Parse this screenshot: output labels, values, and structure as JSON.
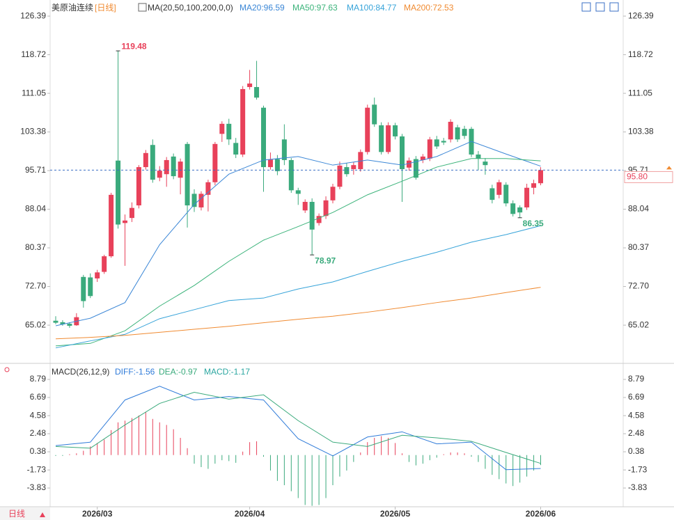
{
  "chart_data": [
    {
      "type": "candlestick",
      "title": "美原油连续",
      "period": "[日线]",
      "indicator": "MA(20,50,100,200,0,0)",
      "open": [
        65.9,
        65.6,
        65.3,
        65.0,
        74.6,
        74.5,
        74.3,
        75.6,
        78.7,
        97.7,
        85.3,
        86.3,
        88.8,
        96.4,
        100.8,
        94.3,
        95.0,
        98.5,
        94.3,
        101.0,
        91.1,
        88.4,
        90.9,
        93.4,
        103.0,
        105.0,
        101.2,
        98.9,
        112.3,
        112.3,
        108.2,
        96.4,
        98.0,
        101.9,
        97.8,
        91.8,
        87.8,
        89.5,
        85.3,
        86.7,
        89.8,
        92.5,
        96.4,
        96.0,
        96.0,
        99.4,
        108.8,
        104.7,
        99.4,
        104.7,
        102.5,
        96.3,
        98.0,
        97.8,
        98.1,
        101.9,
        101.6,
        101.9,
        104.3,
        104.0,
        104.0,
        98.9,
        97.5,
        92.2,
        90.9,
        92.9,
        89.2,
        88.4,
        88.4,
        92.3,
        93.2
      ],
      "high": [
        66.8,
        66.0,
        65.6,
        67.4,
        75.0,
        75.3,
        76.0,
        79.0,
        91.3,
        119.48,
        87.0,
        89.4,
        96.8,
        99.8,
        101.9,
        96.6,
        98.4,
        99.1,
        98.1,
        101.4,
        92.0,
        91.6,
        93.9,
        101.4,
        105.5,
        106.0,
        102.2,
        112.5,
        115.7,
        117.5,
        108.6,
        99.3,
        98.8,
        104.9,
        98.2,
        92.3,
        90.0,
        90.2,
        87.2,
        90.6,
        93.1,
        97.5,
        97.2,
        97.4,
        99.9,
        108.8,
        110.2,
        105.3,
        105.3,
        105.2,
        103.0,
        98.3,
        98.6,
        99.0,
        102.4,
        102.6,
        102.2,
        105.9,
        104.8,
        104.6,
        104.4,
        99.6,
        98.2,
        92.9,
        93.9,
        93.4,
        89.8,
        88.8,
        93.1,
        93.9,
        96.4
      ],
      "low": [
        65.2,
        64.9,
        64.5,
        64.9,
        68.5,
        70.4,
        73.6,
        75.2,
        78.4,
        84.2,
        76.8,
        85.5,
        88.2,
        95.9,
        93.3,
        93.6,
        92.5,
        94.0,
        91.0,
        84.4,
        87.5,
        87.8,
        87.6,
        92.8,
        101.4,
        100.8,
        98.2,
        98.4,
        111.8,
        109.8,
        91.5,
        95.9,
        94.8,
        96.8,
        91.3,
        88.9,
        87.3,
        78.97,
        84.8,
        86.1,
        89.2,
        92.0,
        94.5,
        94.9,
        95.5,
        98.9,
        104.4,
        98.9,
        99.0,
        101.9,
        89.5,
        95.7,
        93.9,
        97.2,
        97.6,
        100.0,
        100.8,
        101.3,
        101.4,
        102.0,
        98.4,
        95.8,
        94.9,
        89.2,
        90.2,
        88.6,
        86.6,
        86.35,
        87.9,
        91.0,
        92.8
      ],
      "close": [
        65.5,
        65.2,
        64.9,
        66.6,
        69.8,
        70.8,
        75.5,
        78.7,
        90.9,
        85.0,
        85.8,
        88.3,
        96.4,
        99.2,
        93.9,
        95.7,
        97.8,
        94.6,
        97.5,
        88.8,
        88.5,
        91.1,
        93.4,
        101.0,
        105.0,
        101.9,
        98.9,
        111.9,
        113.0,
        110.2,
        96.4,
        97.9,
        95.6,
        97.8,
        91.8,
        91.1,
        89.5,
        84.0,
        86.7,
        89.8,
        92.5,
        96.7,
        95.0,
        96.8,
        99.4,
        108.2,
        104.9,
        99.4,
        104.7,
        102.5,
        96.0,
        97.7,
        94.3,
        98.5,
        101.9,
        100.5,
        101.3,
        105.4,
        101.9,
        102.6,
        98.9,
        98.1,
        96.8,
        89.9,
        93.4,
        89.2,
        87.1,
        87.4,
        92.3,
        93.2,
        95.8
      ],
      "up_color": "#e8415a",
      "down_color": "#3aaa7c",
      "series": [
        {
          "name": "MA20:96.59",
          "color": "#3a86d6",
          "x": [
            0,
            5,
            10,
            15,
            20,
            25,
            30,
            35,
            40,
            45,
            50,
            55,
            60,
            65,
            70
          ],
          "values": [
            64.9,
            66.4,
            69.5,
            81.0,
            89.0,
            95.0,
            97.8,
            98.5,
            96.8,
            97.8,
            96.8,
            98.5,
            101.5,
            99.0,
            96.59
          ]
        },
        {
          "name": "MA50:97.63",
          "color": "#3bb37a",
          "x": [
            0,
            5,
            10,
            15,
            20,
            25,
            30,
            35,
            40,
            45,
            50,
            55,
            60,
            65,
            70
          ],
          "values": [
            60.9,
            61.4,
            63.9,
            68.8,
            72.9,
            77.7,
            81.9,
            84.6,
            87.4,
            90.9,
            93.6,
            96.4,
            98.1,
            98.1,
            97.63
          ]
        },
        {
          "name": "MA100:84.77",
          "color": "#36a3d9",
          "x": [
            0,
            5,
            10,
            15,
            20,
            25,
            30,
            35,
            40,
            45,
            50,
            55,
            60,
            65,
            70
          ],
          "values": [
            60.5,
            61.9,
            63.2,
            66.3,
            68.1,
            69.9,
            70.4,
            72.2,
            73.6,
            75.7,
            77.7,
            79.5,
            81.5,
            83.0,
            84.77
          ]
        },
        {
          "name": "MA200:72.53",
          "color": "#f08a30",
          "x": [
            0,
            5,
            10,
            15,
            20,
            25,
            30,
            35,
            40,
            45,
            50,
            55,
            60,
            65,
            70
          ],
          "values": [
            62.3,
            62.6,
            63.0,
            63.6,
            64.2,
            64.8,
            65.5,
            66.2,
            66.8,
            67.6,
            68.5,
            69.5,
            70.4,
            71.5,
            72.53
          ]
        }
      ],
      "ylim": [
        58.4,
        128.2
      ],
      "yticks": [
        126.39,
        118.72,
        111.05,
        103.38,
        95.71,
        88.04,
        80.37,
        {
          "value": 72.7,
          "label": "72.70"
        },
        65.02
      ],
      "current_price": {
        "value": 95.8,
        "label": "95.80"
      },
      "xticks": [
        {
          "value": 6,
          "label": "2026/03"
        },
        {
          "value": 28,
          "label": "2026/04"
        },
        {
          "value": 49,
          "label": "2026/05"
        },
        {
          "value": 70,
          "label": "2026/06"
        }
      ]
    },
    {
      "type": "macd",
      "title": "MACD(26,12,9)",
      "label": "MACD:-1.17",
      "label_color": "#2aa6a0",
      "values": [
        -0.1,
        -0.1,
        0.1,
        0.2,
        0.5,
        1.0,
        1.4,
        1.8,
        2.9,
        3.8,
        4.0,
        4.3,
        4.6,
        5.0,
        4.2,
        3.8,
        3.5,
        3.0,
        2.0,
        0.8,
        -1.0,
        -1.4,
        -1.6,
        -1.0,
        -0.6,
        -0.7,
        -0.9,
        0.4,
        1.5,
        1.6,
        -0.2,
        -1.8,
        -3.0,
        -3.5,
        -4.2,
        -5.0,
        -5.8,
        -5.9,
        -5.8,
        -5.0,
        -3.5,
        -2.5,
        -1.8,
        -0.8,
        0.3,
        1.5,
        2.0,
        2.2,
        2.0,
        1.4,
        0.2,
        -0.8,
        -1.2,
        -1.0,
        -0.6,
        -0.3,
        0.1,
        0.3,
        0.3,
        0.2,
        -0.2,
        -0.8,
        -1.6,
        -2.3,
        -2.8,
        -3.3,
        -3.6,
        -3.2,
        -2.5,
        -1.8,
        -1.17
      ],
      "up_color": "#e8415a",
      "down_color": "#3aaa7c",
      "series": [
        {
          "name": "DIFF:-1.56",
          "color": "#2f7bd9",
          "x": [
            0,
            5,
            10,
            15,
            20,
            25,
            30,
            35,
            40,
            45,
            50,
            55,
            60,
            65,
            70
          ],
          "values": [
            1.1,
            1.5,
            6.4,
            8.0,
            6.4,
            6.8,
            6.4,
            1.9,
            -0.1,
            2.1,
            2.7,
            1.3,
            1.5,
            -1.7,
            -1.56
          ]
        },
        {
          "name": "DEA:-0.97",
          "color": "#3aaa7c",
          "x": [
            0,
            5,
            10,
            15,
            20,
            25,
            30,
            35,
            40,
            45,
            50,
            55,
            60,
            65,
            70
          ],
          "values": [
            1.0,
            0.8,
            3.5,
            6.0,
            7.3,
            6.5,
            7.0,
            4.0,
            1.5,
            1.0,
            2.3,
            2.0,
            1.6,
            0.3,
            -0.97
          ]
        }
      ],
      "ylim": [
        -6.01,
        10.17
      ],
      "yticks": [
        8.79,
        6.69,
        4.58,
        2.48,
        0.38,
        -1.73,
        -3.83
      ]
    }
  ],
  "period_tab": "日线"
}
